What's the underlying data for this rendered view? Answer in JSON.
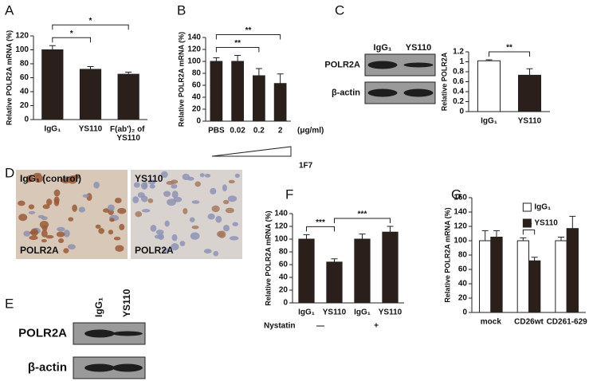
{
  "chart_data": [
    {
      "type": "bar",
      "panel": "A",
      "ylabel": "Relative POLR2A mRNA (%)",
      "categories": [
        "IgG₁",
        "YS110",
        "F(ab')₂ of YS110"
      ],
      "values": [
        100,
        72,
        65
      ],
      "error": [
        6,
        4,
        3
      ],
      "color": "#2b1f1c",
      "ylim": [
        0,
        120
      ],
      "yticks": [
        0,
        20,
        40,
        60,
        80,
        100,
        120
      ],
      "annotations": [
        {
          "text": "*",
          "from": 0,
          "to": 1
        },
        {
          "text": "*",
          "from": 0,
          "to": 2
        }
      ]
    },
    {
      "type": "bar",
      "panel": "B",
      "ylabel": "Relative POLR2A mRNA (%)",
      "categories": [
        "PBS",
        "0.02",
        "0.2",
        "2"
      ],
      "values": [
        100,
        100,
        76,
        63
      ],
      "error": [
        6,
        10,
        12,
        16
      ],
      "color": "#2b1f1c",
      "ylim": [
        0,
        140
      ],
      "yticks": [
        0,
        20,
        40,
        60,
        80,
        100,
        120,
        140
      ],
      "annotations": [
        {
          "text": "**",
          "from": 0,
          "to": 2
        },
        {
          "text": "**",
          "from": 0,
          "to": 3
        }
      ],
      "unit": "(μg/ml)",
      "treatment": "1F7"
    },
    {
      "type": "bar",
      "panel": "C",
      "ylabel": "Relative POLR2A",
      "categories": [
        "IgG₁",
        "YS110"
      ],
      "values": [
        1.02,
        0.73
      ],
      "error": [
        0.02,
        0.13
      ],
      "colors": [
        "#ffffff",
        "#2b1f1c"
      ],
      "ylim": [
        0,
        1.2
      ],
      "yticks": [
        0,
        0.2,
        0.4,
        0.6,
        0.8,
        1,
        1.2
      ],
      "annotations": [
        {
          "text": "**",
          "from": 0,
          "to": 1
        }
      ]
    },
    {
      "type": "bar",
      "panel": "F",
      "ylabel": "Relative POLR2A mRNA (%)",
      "categories": [
        "IgG₁",
        "YS110",
        "IgG₁",
        "YS110"
      ],
      "values": [
        100,
        64,
        100,
        111
      ],
      "error": [
        7,
        5,
        8,
        9
      ],
      "color": "#2b1f1c",
      "ylim": [
        0,
        140
      ],
      "yticks": [
        0,
        20,
        40,
        60,
        80,
        100,
        120,
        140
      ],
      "annotations": [
        {
          "text": "***",
          "from": 0,
          "to": 1
        },
        {
          "text": "***",
          "from": 1,
          "to": 3
        }
      ],
      "condition": "Nystatin",
      "condition_levels": [
        "—",
        "+"
      ]
    },
    {
      "type": "bar",
      "panel": "G",
      "ylabel": "Relative POLR2A mRNA (%)",
      "categories": [
        "mock",
        "CD26wt",
        "CD261-629"
      ],
      "series": [
        {
          "name": "IgG₁",
          "color": "#ffffff",
          "values": [
            100,
            100,
            100
          ],
          "error": [
            14,
            4,
            5
          ]
        },
        {
          "name": "YS110",
          "color": "#2b1f1c",
          "values": [
            105,
            72,
            117
          ],
          "error": [
            9,
            5,
            17
          ]
        }
      ],
      "ylim": [
        0,
        160
      ],
      "yticks": [
        0,
        20,
        40,
        60,
        80,
        100,
        120,
        140,
        160
      ],
      "annotations": [
        {
          "text": "**",
          "from": 1,
          "to": 1
        }
      ],
      "legend": "upper right"
    }
  ],
  "blots": [
    {
      "lanes": [
        "IgG₁",
        "YS110"
      ],
      "rows": [
        "POLR2A",
        "β-actin"
      ]
    },
    {
      "panel": "E",
      "lanes": [
        "IgG₁",
        "YS110"
      ],
      "rows": [
        "POLR2A",
        "β-actin"
      ]
    }
  ],
  "micrographs": {
    "panel": "D",
    "images": [
      {
        "title": "IgG₁ (control)",
        "stain": "POLR2A"
      },
      {
        "title": "YS110",
        "stain": "POLR2A"
      }
    ]
  }
}
